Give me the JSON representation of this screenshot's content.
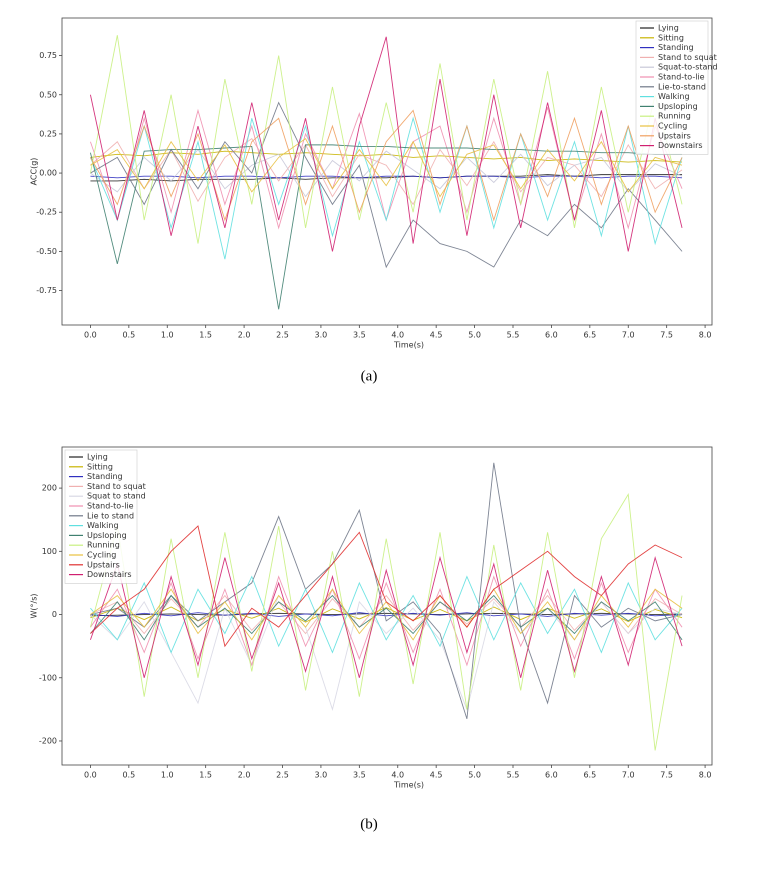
{
  "chart_data": [
    {
      "type": "line",
      "caption": "(a)",
      "xlabel": "Time(s)",
      "ylabel": "ACC(g)",
      "legend": "upper right",
      "xlim": [
        -0.37,
        8.09
      ],
      "ylim": [
        -0.97,
        0.99
      ],
      "xticks": [
        {
          "value": 0,
          "label": "0.0"
        },
        0.5,
        {
          "value": 1,
          "label": "1.0"
        },
        1.5,
        {
          "value": 2,
          "label": "2.0"
        },
        2.5,
        {
          "value": 3,
          "label": "3.0"
        },
        3.5,
        {
          "value": 4,
          "label": "4.0"
        },
        4.5,
        {
          "value": 5,
          "label": "5.0"
        },
        5.5,
        {
          "value": 6,
          "label": "6.0"
        },
        6.5,
        {
          "value": 7,
          "label": "7.0"
        },
        7.5,
        {
          "value": 8,
          "label": "8.0"
        }
      ],
      "yticks": [
        -0.75,
        {
          "value": -0.5,
          "label": "-0.50"
        },
        -0.25,
        {
          "value": 0,
          "label": "0.00"
        },
        0.25,
        {
          "value": 0.5,
          "label": "0.50"
        },
        0.75
      ],
      "x": [
        0,
        0.35,
        0.7,
        1.05,
        1.4,
        1.75,
        2.1,
        2.45,
        2.8,
        3.15,
        3.5,
        3.85,
        4.2,
        4.55,
        4.9,
        5.25,
        5.6,
        5.95,
        6.3,
        6.65,
        7.0,
        7.35,
        7.7
      ],
      "series": [
        {
          "name": "Lying",
          "color": "#222222",
          "values": [
            -0.05,
            -0.05,
            -0.04,
            -0.05,
            -0.04,
            -0.04,
            -0.04,
            -0.03,
            -0.04,
            -0.03,
            -0.03,
            -0.03,
            -0.02,
            -0.03,
            -0.02,
            -0.02,
            -0.02,
            -0.01,
            -0.02,
            -0.01,
            -0.01,
            -0.01,
            -0.01
          ]
        },
        {
          "name": "Sitting",
          "color": "#c8b400",
          "values": [
            0.1,
            0.12,
            0.11,
            0.13,
            0.12,
            0.14,
            0.13,
            0.12,
            0.13,
            0.12,
            0.11,
            0.12,
            0.1,
            0.11,
            0.1,
            0.09,
            0.1,
            0.08,
            0.09,
            0.08,
            0.07,
            0.08,
            0.07
          ]
        },
        {
          "name": "Standing",
          "color": "#3030c0",
          "values": [
            -0.02,
            -0.03,
            -0.02,
            -0.02,
            -0.03,
            -0.02,
            -0.02,
            -0.03,
            -0.02,
            -0.02,
            -0.03,
            -0.02,
            -0.02,
            -0.03,
            -0.02,
            -0.02,
            -0.03,
            -0.02,
            -0.02,
            -0.03,
            -0.02,
            -0.02,
            -0.03
          ]
        },
        {
          "name": "Stand to squat",
          "color": "#f0b0b0",
          "values": [
            0.05,
            0.2,
            -0.1,
            0.15,
            -0.18,
            0.1,
            0.22,
            -0.05,
            0.18,
            -0.15,
            0.12,
            0.05,
            -0.2,
            0.15,
            -0.08,
            0.2,
            -0.12,
            0.1,
            0.05,
            -0.15,
            0.18,
            -0.1,
            0.02
          ]
        },
        {
          "name": "Squat-to-stand",
          "color": "#c8c8d8",
          "values": [
            0,
            -0.12,
            0.1,
            -0.05,
            0.15,
            -0.1,
            0.05,
            0.12,
            -0.15,
            0.08,
            -0.05,
            0.14,
            0.02,
            -0.1,
            0.1,
            -0.06,
            0.12,
            -0.08,
            0.05,
            0.1,
            -0.12,
            0.06,
            -0.02
          ]
        },
        {
          "name": "Stand-to-lie",
          "color": "#f090b0",
          "values": [
            0.2,
            -0.3,
            0.35,
            -0.25,
            0.4,
            -0.2,
            0.3,
            -0.35,
            0.25,
            -0.1,
            0.38,
            -0.3,
            0.2,
            0.3,
            -0.25,
            0.35,
            -0.2,
            0.42,
            -0.3,
            0.25,
            -0.35,
            0.3,
            -0.1
          ]
        },
        {
          "name": "Lie-to-stand",
          "color": "#707888",
          "values": [
            0,
            0.1,
            -0.2,
            0.15,
            -0.1,
            0.2,
            0,
            0.45,
            0.1,
            -0.2,
            0.05,
            -0.6,
            -0.3,
            -0.45,
            -0.5,
            -0.6,
            -0.3,
            -0.4,
            -0.2,
            -0.35,
            -0.1,
            -0.3,
            -0.5
          ]
        },
        {
          "name": "Walking",
          "color": "#60e0e0",
          "values": [
            0.1,
            -0.3,
            0.3,
            -0.35,
            0.2,
            -0.55,
            0.35,
            -0.2,
            0.3,
            -0.4,
            0.2,
            -0.3,
            0.35,
            -0.25,
            0.3,
            -0.35,
            0.25,
            -0.3,
            0.2,
            -0.4,
            0.3,
            -0.45,
            0.1
          ]
        },
        {
          "name": "Upsloping",
          "color": "#3f8070",
          "values": [
            0.13,
            -0.58,
            0.14,
            0.15,
            0.15,
            0.16,
            0.17,
            -0.87,
            0.18,
            0.18,
            0.17,
            0.17,
            0.16,
            0.16,
            0.16,
            0.15,
            0.15,
            0.14,
            0.14,
            0.13,
            0.13,
            0.12,
            0.12
          ]
        },
        {
          "name": "Running",
          "color": "#c8f080",
          "values": [
            0,
            0.88,
            -0.3,
            0.5,
            -0.45,
            0.6,
            -0.2,
            0.75,
            -0.35,
            0.55,
            -0.3,
            0.45,
            -0.25,
            0.7,
            -0.3,
            0.6,
            -0.2,
            0.65,
            -0.35,
            0.55,
            -0.25,
            0.5,
            -0.2
          ]
        },
        {
          "name": "Cycling",
          "color": "#e8c040",
          "values": [
            0.05,
            0.15,
            -0.1,
            0.2,
            -0.05,
            0.18,
            -0.12,
            0.1,
            0.22,
            -0.1,
            0.15,
            -0.08,
            0.2,
            -0.15,
            0.12,
            0.18,
            -0.1,
            0.15,
            -0.05,
            0.2,
            -0.12,
            0.1,
            0.05
          ]
        },
        {
          "name": "Upstairs",
          "color": "#f0a060",
          "values": [
            0.1,
            -0.2,
            0.3,
            -0.15,
            0.25,
            -0.3,
            0.2,
            0.35,
            -0.2,
            0.3,
            -0.25,
            0.2,
            0.4,
            -0.2,
            0.3,
            -0.3,
            0.25,
            -0.15,
            0.35,
            -0.2,
            0.3,
            -0.25,
            0.1
          ]
        },
        {
          "name": "Downstairs",
          "color": "#d02070",
          "values": [
            0.5,
            -0.3,
            0.4,
            -0.4,
            0.3,
            -0.35,
            0.45,
            -0.3,
            0.35,
            -0.5,
            0.3,
            0.87,
            -0.45,
            0.6,
            -0.4,
            0.5,
            -0.35,
            0.45,
            -0.3,
            0.4,
            -0.5,
            0.35,
            -0.35
          ]
        }
      ]
    },
    {
      "type": "line",
      "caption": "(b)",
      "xlabel": "Time(s)",
      "ylabel": "W(°/s)",
      "legend": "upper left",
      "xlim": [
        -0.37,
        8.09
      ],
      "ylim": [
        -238,
        265
      ],
      "xticks": [
        {
          "value": 0,
          "label": "0.0"
        },
        0.5,
        {
          "value": 1,
          "label": "1.0"
        },
        1.5,
        {
          "value": 2,
          "label": "2.0"
        },
        2.5,
        {
          "value": 3,
          "label": "3.0"
        },
        3.5,
        {
          "value": 4,
          "label": "4.0"
        },
        4.5,
        {
          "value": 5,
          "label": "5.0"
        },
        5.5,
        {
          "value": 6,
          "label": "6.0"
        },
        6.5,
        {
          "value": 7,
          "label": "7.0"
        },
        7.5,
        {
          "value": 8,
          "label": "8.0"
        }
      ],
      "yticks": [
        -200,
        -100,
        0,
        100,
        200
      ],
      "x": [
        0,
        0.35,
        0.7,
        1.05,
        1.4,
        1.75,
        2.1,
        2.45,
        2.8,
        3.15,
        3.5,
        3.85,
        4.2,
        4.55,
        4.9,
        5.25,
        5.6,
        5.95,
        6.3,
        6.65,
        7.0,
        7.35,
        7.7
      ],
      "series": [
        {
          "name": "Lying",
          "color": "#222222",
          "values": [
            -2,
            -1,
            0,
            1,
            0,
            -1,
            1,
            2,
            1,
            0,
            1,
            2,
            1,
            0,
            1,
            2,
            1,
            0,
            1,
            2,
            1,
            0,
            1
          ]
        },
        {
          "name": "Sitting",
          "color": "#c8b400",
          "values": [
            -5,
            10,
            -8,
            12,
            -10,
            8,
            -6,
            10,
            -12,
            9,
            -7,
            11,
            -9,
            8,
            -10,
            12,
            -8,
            10,
            -6,
            9,
            -11,
            8,
            -5
          ]
        },
        {
          "name": "Standing",
          "color": "#3030c0",
          "values": [
            0,
            -3,
            2,
            -2,
            3,
            -1,
            2,
            -3,
            1,
            -2,
            3,
            -2,
            2,
            -1,
            3,
            -2,
            1,
            -3,
            2,
            -1,
            2,
            -2,
            0
          ]
        },
        {
          "name": "Stand to squat",
          "color": "#f0b0b0",
          "values": [
            0,
            20,
            -30,
            25,
            -20,
            30,
            -25,
            20,
            -30,
            25,
            -20,
            30,
            -25,
            20,
            -15,
            25,
            -20,
            30,
            -25,
            20,
            -30,
            25,
            0
          ]
        },
        {
          "name": "Squat to stand",
          "color": "#d8d8e4",
          "values": [
            0,
            -40,
            20,
            -60,
            -140,
            10,
            -80,
            30,
            -20,
            -150,
            20,
            -30,
            10,
            -40,
            -150,
            20,
            -30,
            10,
            -40,
            20,
            -30,
            10,
            0
          ]
        },
        {
          "name": "Stand-to-lie",
          "color": "#f090b0",
          "values": [
            -20,
            40,
            -60,
            50,
            -70,
            40,
            -80,
            60,
            -50,
            40,
            -70,
            50,
            -60,
            40,
            -80,
            60,
            -50,
            40,
            -70,
            50,
            -60,
            40,
            -20
          ]
        },
        {
          "name": "Lie to stand",
          "color": "#707888",
          "values": [
            0,
            10,
            -20,
            30,
            -10,
            20,
            50,
            155,
            40,
            80,
            165,
            -10,
            20,
            -30,
            -165,
            240,
            -20,
            -140,
            30,
            -20,
            10,
            -10,
            0
          ]
        },
        {
          "name": "Walking",
          "color": "#60e0e0",
          "values": [
            10,
            -40,
            50,
            -60,
            40,
            -30,
            60,
            -50,
            40,
            -60,
            50,
            -40,
            30,
            -50,
            60,
            -40,
            50,
            -30,
            40,
            -60,
            50,
            -40,
            10
          ]
        },
        {
          "name": "Upsloping",
          "color": "#3f8070",
          "values": [
            -30,
            20,
            -40,
            30,
            -20,
            10,
            -30,
            20,
            -10,
            30,
            -20,
            10,
            -30,
            20,
            -10,
            30,
            -20,
            10,
            -30,
            20,
            -10,
            20,
            -40
          ]
        },
        {
          "name": "Running",
          "color": "#c8f080",
          "values": [
            -20,
            140,
            -130,
            120,
            -100,
            130,
            -90,
            140,
            -120,
            100,
            -130,
            120,
            -110,
            130,
            -150,
            110,
            -120,
            130,
            -100,
            120,
            190,
            -215,
            30
          ]
        },
        {
          "name": "Cycling",
          "color": "#e8c040",
          "values": [
            0,
            30,
            -20,
            40,
            -30,
            20,
            -40,
            30,
            -20,
            40,
            -30,
            20,
            -40,
            30,
            -20,
            40,
            -30,
            20,
            -40,
            30,
            -20,
            40,
            10
          ]
        },
        {
          "name": "Upstairs",
          "color": "#e03030",
          "values": [
            -30,
            10,
            40,
            100,
            140,
            -50,
            10,
            -20,
            30,
            80,
            130,
            20,
            -10,
            30,
            -20,
            40,
            70,
            100,
            60,
            30,
            80,
            110,
            90
          ]
        },
        {
          "name": "Downstairs",
          "color": "#d02070",
          "values": [
            -40,
            80,
            -100,
            60,
            -80,
            90,
            -70,
            50,
            -90,
            60,
            -100,
            70,
            -80,
            90,
            -60,
            80,
            -100,
            70,
            -90,
            60,
            -80,
            90,
            -50
          ]
        }
      ]
    }
  ]
}
